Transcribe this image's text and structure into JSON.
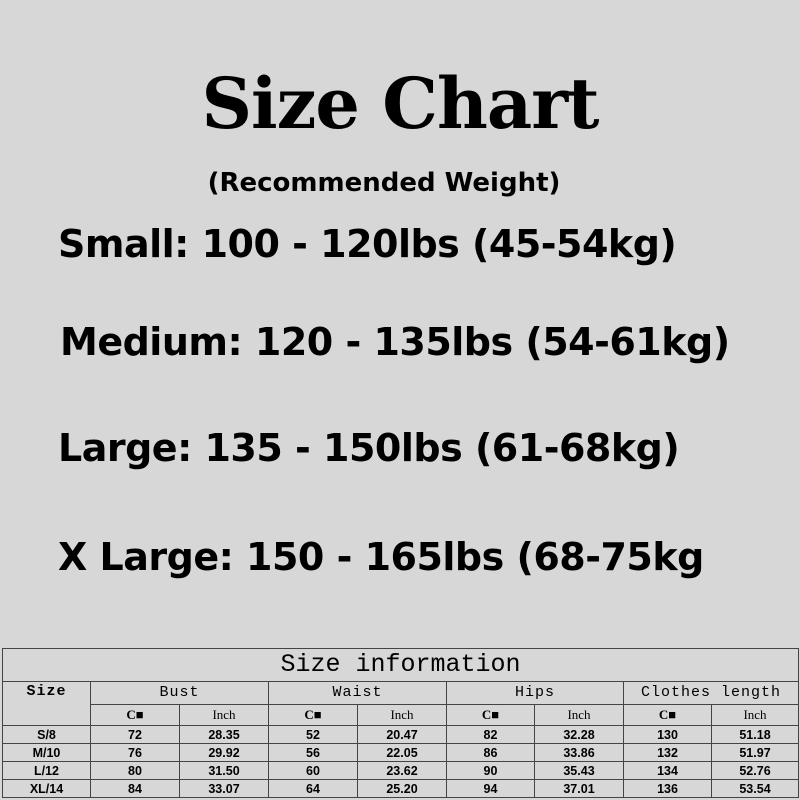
{
  "title": "Size Chart",
  "subtitle": "(Recommended Weight)",
  "weights": [
    "Small: 100 - 120lbs (45-54kg)",
    "Medium: 120 - 135lbs (54-61kg)",
    "Large: 135 - 150lbs (61-68kg)",
    "X Large: 150 - 165lbs (68-75kg"
  ],
  "table": {
    "title": "Size information",
    "headers": [
      "Size",
      "Bust",
      "Waist",
      "Hips",
      "Clothes length"
    ],
    "units": [
      "C■",
      "Inch"
    ],
    "rows": [
      [
        "S/8",
        "72",
        "28.35",
        "52",
        "20.47",
        "82",
        "32.28",
        "130",
        "51.18"
      ],
      [
        "M/10",
        "76",
        "29.92",
        "56",
        "22.05",
        "86",
        "33.86",
        "132",
        "51.97"
      ],
      [
        "L/12",
        "80",
        "31.50",
        "60",
        "23.62",
        "90",
        "35.43",
        "134",
        "52.76"
      ],
      [
        "XL/14",
        "84",
        "33.07",
        "64",
        "25.20",
        "94",
        "37.01",
        "136",
        "53.54"
      ]
    ]
  }
}
